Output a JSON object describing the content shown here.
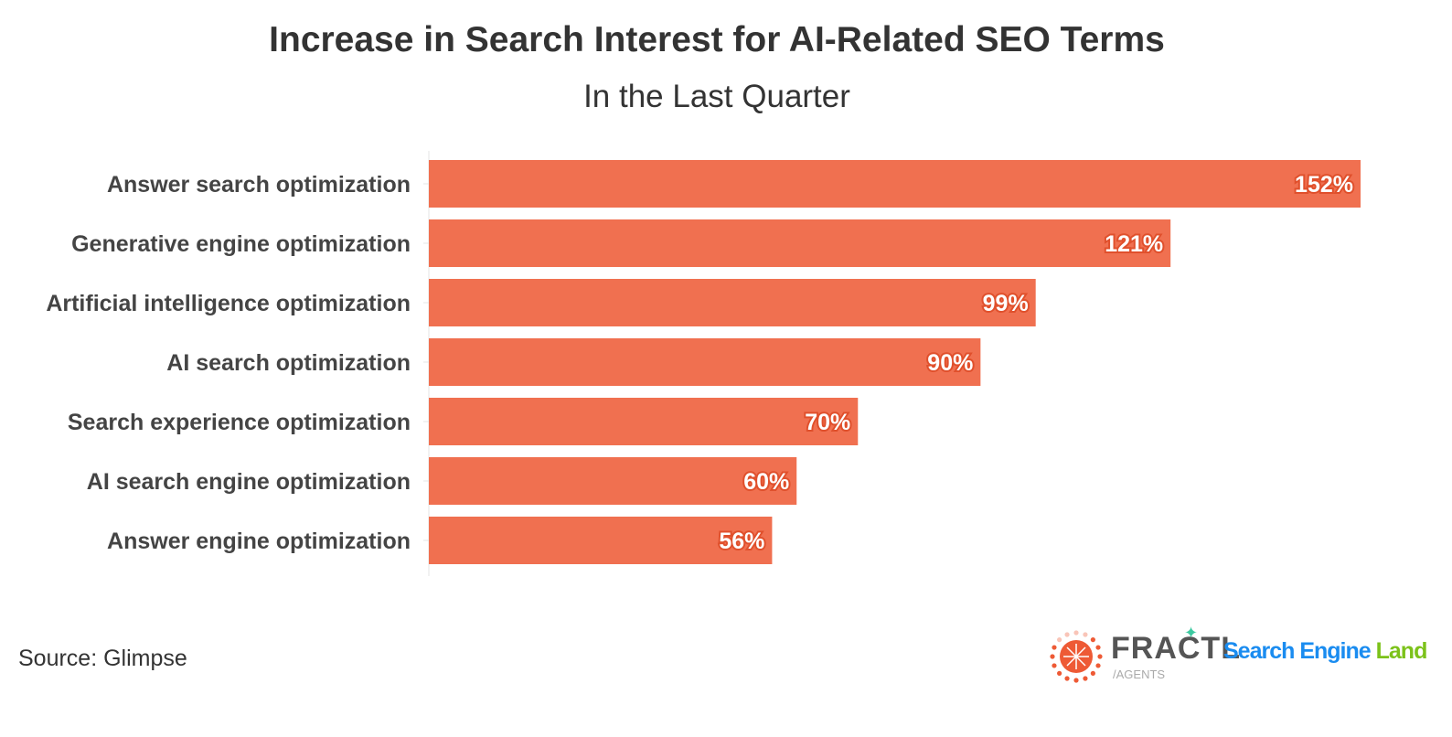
{
  "chart_data": {
    "type": "bar",
    "orientation": "horizontal",
    "title": "Increase in Search Interest for AI-Related SEO Terms",
    "subtitle": "In the Last Quarter",
    "categories": [
      "Answer search optimization",
      "Generative engine optimization",
      "Artificial intelligence optimization",
      "AI search optimization",
      "Search experience optimization",
      "AI search engine optimization",
      "Answer engine optimization"
    ],
    "values": [
      152,
      121,
      99,
      90,
      70,
      60,
      56
    ],
    "data_labels": [
      "152%",
      "121%",
      "99%",
      "90%",
      "70%",
      "60%",
      "56%"
    ],
    "xlim": [
      0,
      152
    ],
    "grid": false,
    "bar_color": "#f07050",
    "label_outline_color": "#e0502c"
  },
  "source": "Source: Glimpse",
  "logos": {
    "fractl": "FRACTL",
    "fractl_sub": "/AGENTS",
    "sel_blue": "Search Engine",
    "sel_green": "Land"
  }
}
